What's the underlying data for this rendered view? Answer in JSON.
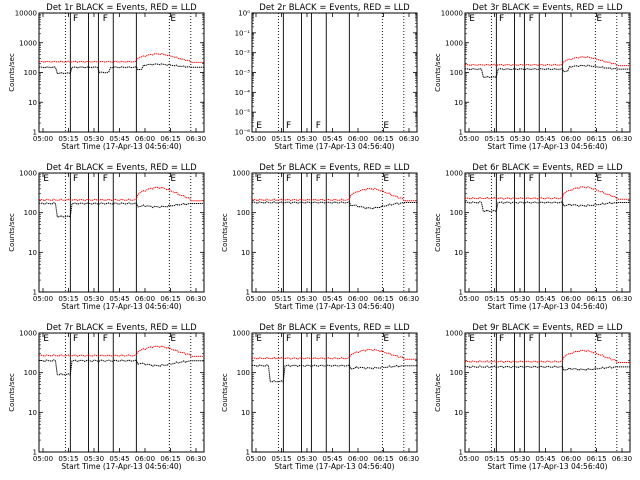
{
  "chart_data": [
    {
      "type": "line",
      "title": "Det 1r BLACK = Events, RED = LLD",
      "xlabel": "Start Time (17-Apr-13 04:56:40)",
      "ylabel": "Counts/sec",
      "x_ticks": [
        "05:00",
        "05:15",
        "05:30",
        "05:45",
        "06:00",
        "06:15",
        "06:30"
      ],
      "y_ticks": [
        "1",
        "10",
        "100",
        "1000",
        "10000"
      ],
      "ylim": [
        1,
        10000
      ],
      "y_scale": "log",
      "flags": [
        "F",
        "F",
        "E"
      ],
      "series": [
        {
          "color": "#000000",
          "level": 150,
          "step_low": 95,
          "step_low2": 100,
          "hump": 190
        },
        {
          "color": "#ff0000",
          "level": 230,
          "step_low": 0,
          "step_low2": 0,
          "hump": 420
        }
      ]
    },
    {
      "type": "line",
      "title": "Det 2r BLACK = Events, RED = LLD",
      "xlabel": "Start Time (17-Apr-13 04:56:40)",
      "ylabel": "",
      "x_ticks": [
        "05:00",
        "05:15",
        "05:30",
        "05:45",
        "06:00",
        "06:15",
        "06:30"
      ],
      "y_ticks": [
        "10⁻⁶",
        "10⁻⁵",
        "10⁻⁴",
        "10⁻³",
        "10⁻²",
        "10⁻¹",
        "10⁰"
      ],
      "ylim": [
        1e-06,
        1
      ],
      "y_scale": "log",
      "flags": [
        "E",
        "F",
        "F",
        "E"
      ],
      "series": []
    },
    {
      "type": "line",
      "title": "Det 3r BLACK = Events, RED = LLD",
      "xlabel": "Start Time (17-Apr-13 04:56:40)",
      "ylabel": "Counts/sec",
      "x_ticks": [
        "05:00",
        "05:15",
        "05:30",
        "05:45",
        "06:00",
        "06:15",
        "06:30"
      ],
      "y_ticks": [
        "1",
        "10",
        "100",
        "1000",
        "10000"
      ],
      "ylim": [
        1,
        10000
      ],
      "y_scale": "log",
      "flags": [
        "E",
        "F",
        "F",
        "E"
      ],
      "series": [
        {
          "color": "#000000",
          "level": 130,
          "step_low": 70,
          "step_low2": 0,
          "hump": 170
        },
        {
          "color": "#ff0000",
          "level": 180,
          "step_low": 0,
          "step_low2": 0,
          "hump": 330
        }
      ]
    },
    {
      "type": "line",
      "title": "Det 4r BLACK = Events, RED = LLD",
      "xlabel": "Start Time (17-Apr-13 04:56:40)",
      "ylabel": "Counts/sec",
      "x_ticks": [
        "05:00",
        "05:15",
        "05:30",
        "05:45",
        "06:00",
        "06:15",
        "06:30"
      ],
      "y_ticks": [
        "1",
        "10",
        "100",
        "1000"
      ],
      "ylim": [
        1,
        1000
      ],
      "y_scale": "log",
      "flags": [
        "E",
        "F",
        "F",
        "E"
      ],
      "series": [
        {
          "color": "#000000",
          "level": 170,
          "step_low": 80,
          "step_low2": 0,
          "hump": 140
        },
        {
          "color": "#ff0000",
          "level": 210,
          "step_low": 0,
          "step_low2": 0,
          "hump": 430
        }
      ]
    },
    {
      "type": "line",
      "title": "Det 5r BLACK = Events, RED = LLD",
      "xlabel": "Start Time (17-Apr-13 04:56:40)",
      "ylabel": "Counts/sec",
      "x_ticks": [
        "05:00",
        "05:15",
        "05:30",
        "05:45",
        "06:00",
        "06:15",
        "06:30"
      ],
      "y_ticks": [
        "1",
        "10",
        "100",
        "1000"
      ],
      "ylim": [
        1,
        1000
      ],
      "y_scale": "log",
      "flags": [
        "E",
        "F",
        "F",
        "E"
      ],
      "series": [
        {
          "color": "#000000",
          "level": 180,
          "step_low": 0,
          "step_low2": 0,
          "hump": 130
        },
        {
          "color": "#ff0000",
          "level": 210,
          "step_low": 0,
          "step_low2": 0,
          "hump": 400
        }
      ]
    },
    {
      "type": "line",
      "title": "Det 6r BLACK = Events, RED = LLD",
      "xlabel": "Start Time (17-Apr-13 04:56:40)",
      "ylabel": "Counts/sec",
      "x_ticks": [
        "05:00",
        "05:15",
        "05:30",
        "05:45",
        "06:00",
        "06:15",
        "06:30"
      ],
      "y_ticks": [
        "1",
        "10",
        "100",
        "1000"
      ],
      "ylim": [
        1,
        1000
      ],
      "y_scale": "log",
      "flags": [
        "E",
        "F",
        "F",
        "E"
      ],
      "series": [
        {
          "color": "#000000",
          "level": 180,
          "step_low": 110,
          "step_low2": 0,
          "hump": 150
        },
        {
          "color": "#ff0000",
          "level": 230,
          "step_low": 0,
          "step_low2": 0,
          "hump": 440
        }
      ]
    },
    {
      "type": "line",
      "title": "Det 7r BLACK = Events, RED = LLD",
      "xlabel": "Start Time (17-Apr-13 04:56:40)",
      "ylabel": "Counts/sec",
      "x_ticks": [
        "05:00",
        "05:15",
        "05:30",
        "05:45",
        "06:00",
        "06:15",
        "06:30"
      ],
      "y_ticks": [
        "1",
        "10",
        "100",
        "1000"
      ],
      "ylim": [
        1,
        1000
      ],
      "y_scale": "log",
      "flags": [
        "E",
        "F",
        "F",
        "E"
      ],
      "series": [
        {
          "color": "#000000",
          "level": 200,
          "step_low": 90,
          "step_low2": 0,
          "hump": 150
        },
        {
          "color": "#ff0000",
          "level": 270,
          "step_low": 0,
          "step_low2": 0,
          "hump": 460
        }
      ]
    },
    {
      "type": "line",
      "title": "Det 8r BLACK = Events, RED = LLD",
      "xlabel": "Start Time (17-Apr-13 04:56:40)",
      "ylabel": "Counts/sec",
      "x_ticks": [
        "05:00",
        "05:15",
        "05:30",
        "05:45",
        "06:00",
        "06:15",
        "06:30"
      ],
      "y_ticks": [
        "1",
        "10",
        "100",
        "1000"
      ],
      "ylim": [
        1,
        1000
      ],
      "y_scale": "log",
      "flags": [
        "E",
        "F",
        "F",
        "E"
      ],
      "series": [
        {
          "color": "#000000",
          "level": 150,
          "step_low": 60,
          "step_low2": 0,
          "hump": 130
        },
        {
          "color": "#ff0000",
          "level": 230,
          "step_low": 0,
          "step_low2": 0,
          "hump": 380
        }
      ]
    },
    {
      "type": "line",
      "title": "Det 9r BLACK = Events, RED = LLD",
      "xlabel": "Start Time (17-Apr-13 04:56:40)",
      "ylabel": "Counts/sec",
      "x_ticks": [
        "05:00",
        "05:15",
        "05:30",
        "05:45",
        "06:00",
        "06:15",
        "06:30"
      ],
      "y_ticks": [
        "1",
        "10",
        "100",
        "1000"
      ],
      "ylim": [
        1,
        1000
      ],
      "y_scale": "log",
      "flags": [
        "E",
        "F",
        "F",
        "E"
      ],
      "series": [
        {
          "color": "#000000",
          "level": 140,
          "step_low": 0,
          "step_low2": 0,
          "hump": 120
        },
        {
          "color": "#ff0000",
          "level": 190,
          "step_low": 0,
          "step_low2": 0,
          "hump": 360
        }
      ]
    }
  ]
}
